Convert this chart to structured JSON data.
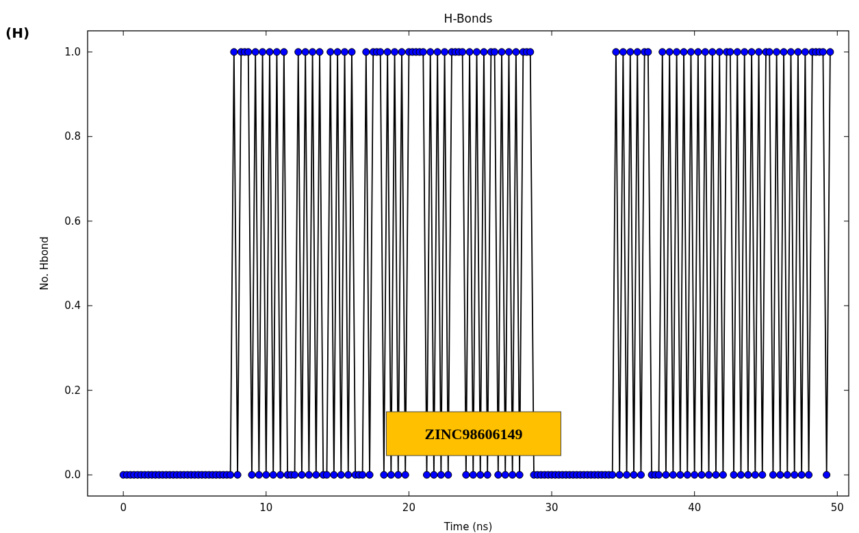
{
  "chart_data": {
    "type": "line",
    "title": "H-Bonds",
    "xlabel": "Time (ns)",
    "ylabel": "No. Hbond",
    "annotations": [
      "(H)",
      "ZINC98606149"
    ],
    "xlim": [
      -2.5,
      50.8
    ],
    "ylim": [
      -0.05,
      1.05
    ],
    "xticks": [
      0,
      10,
      20,
      30,
      40,
      50
    ],
    "yticks": [
      {
        "value": 0,
        "label": "0.0"
      },
      {
        "value": 0.2,
        "label": "0.2"
      },
      {
        "value": 0.4,
        "label": "0.4"
      },
      {
        "value": 0.6,
        "label": "0.6"
      },
      {
        "value": 0.8,
        "label": "0.8"
      },
      {
        "value": 1,
        "label": "1.0"
      }
    ],
    "grid": false,
    "marker": "circle",
    "line_style": "solid",
    "series": [
      {
        "color": "#0000ff",
        "x": [
          0,
          0.25,
          0.5,
          0.75,
          1,
          1.25,
          1.5,
          1.75,
          2,
          2.25,
          2.5,
          2.75,
          3,
          3.25,
          3.5,
          3.75,
          4,
          4.25,
          4.5,
          4.75,
          5,
          5.25,
          5.5,
          5.75,
          6,
          6.25,
          6.5,
          6.75,
          7,
          7.25,
          7.5,
          7.75,
          8,
          8.25,
          8.5,
          8.75,
          9,
          9.25,
          9.5,
          9.75,
          10,
          10.25,
          10.5,
          10.75,
          11,
          11.25,
          11.5,
          11.75,
          12,
          12.25,
          12.5,
          12.75,
          13,
          13.25,
          13.5,
          13.75,
          14,
          14.25,
          14.5,
          14.75,
          15,
          15.25,
          15.5,
          15.75,
          16,
          16.25,
          16.5,
          16.75,
          17,
          17.25,
          17.5,
          17.75,
          18,
          18.25,
          18.5,
          18.75,
          19,
          19.25,
          19.5,
          19.75,
          20,
          20.25,
          20.5,
          20.75,
          21,
          21.25,
          21.5,
          21.75,
          22,
          22.25,
          22.5,
          22.75,
          23,
          23.25,
          23.5,
          23.75,
          24,
          24.25,
          24.5,
          24.75,
          25,
          25.25,
          25.5,
          25.75,
          26,
          26.25,
          26.5,
          26.75,
          27,
          27.25,
          27.5,
          27.75,
          28,
          28.25,
          28.5,
          28.75,
          29,
          29.25,
          29.5,
          29.75,
          30,
          30.25,
          30.5,
          30.75,
          31,
          31.25,
          31.5,
          31.75,
          32,
          32.25,
          32.5,
          32.75,
          33,
          33.25,
          33.5,
          33.75,
          34,
          34.25,
          34.5,
          34.75,
          35,
          35.25,
          35.5,
          35.75,
          36,
          36.25,
          36.5,
          36.75,
          37,
          37.25,
          37.5,
          37.75,
          38,
          38.25,
          38.5,
          38.75,
          39,
          39.25,
          39.5,
          39.75,
          40,
          40.25,
          40.5,
          40.75,
          41,
          41.25,
          41.5,
          41.75,
          42,
          42.25,
          42.5,
          42.75,
          43,
          43.25,
          43.5,
          43.75,
          44,
          44.25,
          44.5,
          44.75,
          45,
          45.25,
          45.5,
          45.75,
          46,
          46.25,
          46.5,
          46.75,
          47,
          47.25,
          47.5,
          47.75,
          48,
          48.25,
          48.5,
          48.75,
          49,
          49.25,
          49.5
        ],
        "values": [
          0,
          0,
          0,
          0,
          0,
          0,
          0,
          0,
          0,
          0,
          0,
          0,
          0,
          0,
          0,
          0,
          0,
          0,
          0,
          0,
          0,
          0,
          0,
          0,
          0,
          0,
          0,
          0,
          0,
          0,
          0,
          1,
          0,
          1,
          1,
          1,
          0,
          1,
          0,
          1,
          0,
          1,
          0,
          1,
          0,
          1,
          0,
          0,
          0,
          1,
          0,
          1,
          0,
          1,
          0,
          1,
          0,
          0,
          1,
          0,
          1,
          0,
          1,
          0,
          1,
          0,
          0,
          0,
          1,
          0,
          1,
          1,
          1,
          0,
          1,
          0,
          1,
          0,
          1,
          0,
          1,
          1,
          1,
          1,
          1,
          0,
          1,
          0,
          1,
          0,
          1,
          0,
          1,
          1,
          1,
          1,
          0,
          1,
          0,
          1,
          0,
          1,
          0,
          1,
          1,
          0,
          1,
          0,
          1,
          0,
          1,
          0,
          1,
          1,
          1,
          0,
          0,
          0,
          0,
          0,
          0,
          0,
          0,
          0,
          0,
          0,
          0,
          0,
          0,
          0,
          0,
          0,
          0,
          0,
          0,
          0,
          0,
          0,
          1,
          0,
          1,
          0,
          1,
          0,
          1,
          0,
          1,
          1,
          0,
          0,
          0,
          1,
          0,
          1,
          0,
          1,
          0,
          1,
          0,
          1,
          0,
          1,
          0,
          1,
          0,
          1,
          0,
          1,
          0,
          1,
          1,
          0,
          1,
          0,
          1,
          0,
          1,
          0,
          1,
          0,
          1,
          1,
          0,
          1,
          0,
          1,
          0,
          1,
          0,
          1,
          0,
          1,
          0,
          1,
          1,
          1,
          1,
          0,
          1
        ]
      }
    ]
  }
}
